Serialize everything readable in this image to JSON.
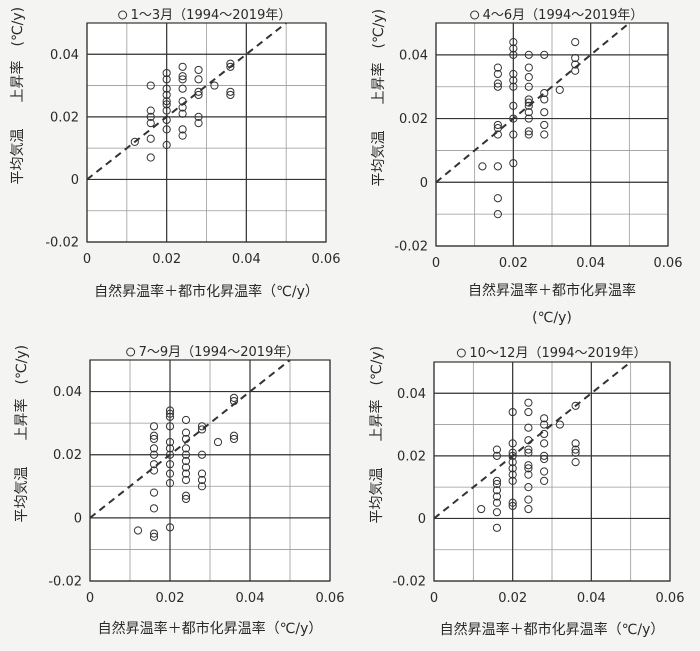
{
  "chart_data": [
    {
      "type": "scatter",
      "title": "1～3月（1994～2019年）",
      "xlabel": "自然昇温率＋都市化昇温率（℃/y）",
      "ylabel_top": "上昇率　(℃/y)",
      "ylabel_bottom": "平均気温",
      "xlim": [
        0,
        0.06
      ],
      "ylim": [
        -0.02,
        0.05
      ],
      "x_ticks": [
        0,
        0.02,
        0.04,
        0.06
      ],
      "x_tick_labels": [
        "0",
        "0.02",
        "0.04",
        "0.06"
      ],
      "y_ticks": [
        -0.02,
        0,
        0.02,
        0.04
      ],
      "y_tick_labels": [
        "-0.02",
        "0",
        "0.02",
        "0.04"
      ],
      "grid": true,
      "reference_line": "y = x (dashed)",
      "points": [
        {
          "x": 0.012,
          "y": 0.012
        },
        {
          "x": 0.016,
          "y": 0.007
        },
        {
          "x": 0.016,
          "y": 0.013
        },
        {
          "x": 0.016,
          "y": 0.018
        },
        {
          "x": 0.016,
          "y": 0.02
        },
        {
          "x": 0.016,
          "y": 0.022
        },
        {
          "x": 0.016,
          "y": 0.03
        },
        {
          "x": 0.02,
          "y": 0.011
        },
        {
          "x": 0.02,
          "y": 0.016
        },
        {
          "x": 0.02,
          "y": 0.019
        },
        {
          "x": 0.02,
          "y": 0.022
        },
        {
          "x": 0.02,
          "y": 0.024
        },
        {
          "x": 0.02,
          "y": 0.025
        },
        {
          "x": 0.02,
          "y": 0.027
        },
        {
          "x": 0.02,
          "y": 0.029
        },
        {
          "x": 0.02,
          "y": 0.032
        },
        {
          "x": 0.02,
          "y": 0.034
        },
        {
          "x": 0.024,
          "y": 0.014
        },
        {
          "x": 0.024,
          "y": 0.016
        },
        {
          "x": 0.024,
          "y": 0.021
        },
        {
          "x": 0.024,
          "y": 0.023
        },
        {
          "x": 0.024,
          "y": 0.025
        },
        {
          "x": 0.024,
          "y": 0.029
        },
        {
          "x": 0.024,
          "y": 0.032
        },
        {
          "x": 0.024,
          "y": 0.033
        },
        {
          "x": 0.024,
          "y": 0.036
        },
        {
          "x": 0.028,
          "y": 0.018
        },
        {
          "x": 0.028,
          "y": 0.02
        },
        {
          "x": 0.028,
          "y": 0.027
        },
        {
          "x": 0.028,
          "y": 0.028
        },
        {
          "x": 0.028,
          "y": 0.032
        },
        {
          "x": 0.028,
          "y": 0.035
        },
        {
          "x": 0.032,
          "y": 0.03
        },
        {
          "x": 0.036,
          "y": 0.027
        },
        {
          "x": 0.036,
          "y": 0.028
        },
        {
          "x": 0.036,
          "y": 0.036
        },
        {
          "x": 0.036,
          "y": 0.037
        }
      ]
    },
    {
      "type": "scatter",
      "title": "4～6月（1994～2019年）",
      "xlabel": "自然昇温率＋都市化昇温率",
      "xlabel_unit": "(℃/y)",
      "ylabel_top": "上昇率　(℃/y)",
      "ylabel_bottom": "平均気温",
      "xlim": [
        0,
        0.06
      ],
      "ylim": [
        -0.02,
        0.05
      ],
      "x_ticks": [
        0,
        0.02,
        0.04,
        0.06
      ],
      "x_tick_labels": [
        "0",
        "0.02",
        "0.04",
        "0.06"
      ],
      "y_ticks": [
        -0.02,
        0,
        0.02,
        0.04
      ],
      "y_tick_labels": [
        "-0.02",
        "0",
        "0.02",
        "0.04"
      ],
      "grid": true,
      "reference_line": "y = x (dashed)",
      "points": [
        {
          "x": 0.012,
          "y": 0.005
        },
        {
          "x": 0.016,
          "y": -0.01
        },
        {
          "x": 0.016,
          "y": -0.005
        },
        {
          "x": 0.016,
          "y": 0.005
        },
        {
          "x": 0.016,
          "y": 0.015
        },
        {
          "x": 0.016,
          "y": 0.017
        },
        {
          "x": 0.016,
          "y": 0.018
        },
        {
          "x": 0.016,
          "y": 0.03
        },
        {
          "x": 0.016,
          "y": 0.031
        },
        {
          "x": 0.016,
          "y": 0.034
        },
        {
          "x": 0.016,
          "y": 0.036
        },
        {
          "x": 0.02,
          "y": 0.006
        },
        {
          "x": 0.02,
          "y": 0.015
        },
        {
          "x": 0.02,
          "y": 0.02
        },
        {
          "x": 0.02,
          "y": 0.024
        },
        {
          "x": 0.02,
          "y": 0.03
        },
        {
          "x": 0.02,
          "y": 0.032
        },
        {
          "x": 0.02,
          "y": 0.034
        },
        {
          "x": 0.02,
          "y": 0.04
        },
        {
          "x": 0.02,
          "y": 0.042
        },
        {
          "x": 0.02,
          "y": 0.044
        },
        {
          "x": 0.024,
          "y": 0.015
        },
        {
          "x": 0.024,
          "y": 0.016
        },
        {
          "x": 0.024,
          "y": 0.02
        },
        {
          "x": 0.024,
          "y": 0.022
        },
        {
          "x": 0.024,
          "y": 0.024
        },
        {
          "x": 0.024,
          "y": 0.025
        },
        {
          "x": 0.024,
          "y": 0.026
        },
        {
          "x": 0.024,
          "y": 0.03
        },
        {
          "x": 0.024,
          "y": 0.033
        },
        {
          "x": 0.024,
          "y": 0.036
        },
        {
          "x": 0.024,
          "y": 0.04
        },
        {
          "x": 0.028,
          "y": 0.015
        },
        {
          "x": 0.028,
          "y": 0.018
        },
        {
          "x": 0.028,
          "y": 0.022
        },
        {
          "x": 0.028,
          "y": 0.026
        },
        {
          "x": 0.028,
          "y": 0.028
        },
        {
          "x": 0.028,
          "y": 0.04
        },
        {
          "x": 0.032,
          "y": 0.029
        },
        {
          "x": 0.036,
          "y": 0.035
        },
        {
          "x": 0.036,
          "y": 0.037
        },
        {
          "x": 0.036,
          "y": 0.039
        },
        {
          "x": 0.036,
          "y": 0.044
        }
      ]
    },
    {
      "type": "scatter",
      "title": "7～9月（1994～2019年）",
      "xlabel": "自然昇温率＋都市化昇温率（℃/y）",
      "ylabel_top": "上昇率　(℃/y)",
      "ylabel_bottom": "平均気温",
      "xlim": [
        0,
        0.06
      ],
      "ylim": [
        -0.02,
        0.05
      ],
      "x_ticks": [
        0,
        0.02,
        0.04,
        0.06
      ],
      "x_tick_labels": [
        "0",
        "0.02",
        "0.04",
        "0.06"
      ],
      "y_ticks": [
        -0.02,
        0,
        0.02,
        0.04
      ],
      "y_tick_labels": [
        "-0.02",
        "0",
        "0.02",
        "0.04"
      ],
      "grid": true,
      "reference_line": "y = x (dashed)",
      "points": [
        {
          "x": 0.012,
          "y": -0.004
        },
        {
          "x": 0.016,
          "y": -0.006
        },
        {
          "x": 0.016,
          "y": -0.005
        },
        {
          "x": 0.016,
          "y": 0.003
        },
        {
          "x": 0.016,
          "y": 0.008
        },
        {
          "x": 0.016,
          "y": 0.015
        },
        {
          "x": 0.016,
          "y": 0.017
        },
        {
          "x": 0.016,
          "y": 0.02
        },
        {
          "x": 0.016,
          "y": 0.022
        },
        {
          "x": 0.016,
          "y": 0.025
        },
        {
          "x": 0.016,
          "y": 0.026
        },
        {
          "x": 0.016,
          "y": 0.029
        },
        {
          "x": 0.02,
          "y": -0.003
        },
        {
          "x": 0.02,
          "y": 0.011
        },
        {
          "x": 0.02,
          "y": 0.014
        },
        {
          "x": 0.02,
          "y": 0.017
        },
        {
          "x": 0.02,
          "y": 0.02
        },
        {
          "x": 0.02,
          "y": 0.022
        },
        {
          "x": 0.02,
          "y": 0.024
        },
        {
          "x": 0.02,
          "y": 0.029
        },
        {
          "x": 0.02,
          "y": 0.032
        },
        {
          "x": 0.02,
          "y": 0.033
        },
        {
          "x": 0.02,
          "y": 0.034
        },
        {
          "x": 0.024,
          "y": 0.006
        },
        {
          "x": 0.024,
          "y": 0.007
        },
        {
          "x": 0.024,
          "y": 0.012
        },
        {
          "x": 0.024,
          "y": 0.014
        },
        {
          "x": 0.024,
          "y": 0.016
        },
        {
          "x": 0.024,
          "y": 0.018
        },
        {
          "x": 0.024,
          "y": 0.02
        },
        {
          "x": 0.024,
          "y": 0.022
        },
        {
          "x": 0.024,
          "y": 0.025
        },
        {
          "x": 0.024,
          "y": 0.027
        },
        {
          "x": 0.024,
          "y": 0.031
        },
        {
          "x": 0.028,
          "y": 0.01
        },
        {
          "x": 0.028,
          "y": 0.012
        },
        {
          "x": 0.028,
          "y": 0.014
        },
        {
          "x": 0.028,
          "y": 0.02
        },
        {
          "x": 0.028,
          "y": 0.028
        },
        {
          "x": 0.028,
          "y": 0.029
        },
        {
          "x": 0.032,
          "y": 0.024
        },
        {
          "x": 0.036,
          "y": 0.025
        },
        {
          "x": 0.036,
          "y": 0.026
        },
        {
          "x": 0.036,
          "y": 0.037
        },
        {
          "x": 0.036,
          "y": 0.038
        }
      ]
    },
    {
      "type": "scatter",
      "title": "10～12月（1994～2019年）",
      "xlabel": "自然昇温率＋都市化昇温率（℃/y）",
      "ylabel_top": "上昇率　(℃/y)",
      "ylabel_bottom": "平均気温",
      "xlim": [
        0,
        0.06
      ],
      "ylim": [
        -0.02,
        0.05
      ],
      "x_ticks": [
        0,
        0.02,
        0.04,
        0.06
      ],
      "x_tick_labels": [
        "0",
        "0.02",
        "0.04",
        "0.06"
      ],
      "y_ticks": [
        -0.02,
        0,
        0.02,
        0.04
      ],
      "y_tick_labels": [
        "-0.02",
        "0",
        "0.02",
        "0.04"
      ],
      "grid": true,
      "reference_line": "y = x (dashed)",
      "points": [
        {
          "x": 0.012,
          "y": 0.003
        },
        {
          "x": 0.016,
          "y": -0.003
        },
        {
          "x": 0.016,
          "y": 0.002
        },
        {
          "x": 0.016,
          "y": 0.005
        },
        {
          "x": 0.016,
          "y": 0.007
        },
        {
          "x": 0.016,
          "y": 0.009
        },
        {
          "x": 0.016,
          "y": 0.011
        },
        {
          "x": 0.016,
          "y": 0.012
        },
        {
          "x": 0.016,
          "y": 0.02
        },
        {
          "x": 0.016,
          "y": 0.022
        },
        {
          "x": 0.02,
          "y": 0.004
        },
        {
          "x": 0.02,
          "y": 0.005
        },
        {
          "x": 0.02,
          "y": 0.012
        },
        {
          "x": 0.02,
          "y": 0.014
        },
        {
          "x": 0.02,
          "y": 0.016
        },
        {
          "x": 0.02,
          "y": 0.018
        },
        {
          "x": 0.02,
          "y": 0.02
        },
        {
          "x": 0.02,
          "y": 0.021
        },
        {
          "x": 0.02,
          "y": 0.024
        },
        {
          "x": 0.02,
          "y": 0.034
        },
        {
          "x": 0.024,
          "y": 0.003
        },
        {
          "x": 0.024,
          "y": 0.006
        },
        {
          "x": 0.024,
          "y": 0.01
        },
        {
          "x": 0.024,
          "y": 0.014
        },
        {
          "x": 0.024,
          "y": 0.016
        },
        {
          "x": 0.024,
          "y": 0.017
        },
        {
          "x": 0.024,
          "y": 0.021
        },
        {
          "x": 0.024,
          "y": 0.022
        },
        {
          "x": 0.024,
          "y": 0.025
        },
        {
          "x": 0.024,
          "y": 0.029
        },
        {
          "x": 0.024,
          "y": 0.034
        },
        {
          "x": 0.024,
          "y": 0.037
        },
        {
          "x": 0.028,
          "y": 0.012
        },
        {
          "x": 0.028,
          "y": 0.015
        },
        {
          "x": 0.028,
          "y": 0.019
        },
        {
          "x": 0.028,
          "y": 0.02
        },
        {
          "x": 0.028,
          "y": 0.024
        },
        {
          "x": 0.028,
          "y": 0.027
        },
        {
          "x": 0.028,
          "y": 0.03
        },
        {
          "x": 0.028,
          "y": 0.032
        },
        {
          "x": 0.032,
          "y": 0.03
        },
        {
          "x": 0.036,
          "y": 0.018
        },
        {
          "x": 0.036,
          "y": 0.021
        },
        {
          "x": 0.036,
          "y": 0.022
        },
        {
          "x": 0.036,
          "y": 0.024
        },
        {
          "x": 0.036,
          "y": 0.036
        }
      ]
    }
  ]
}
